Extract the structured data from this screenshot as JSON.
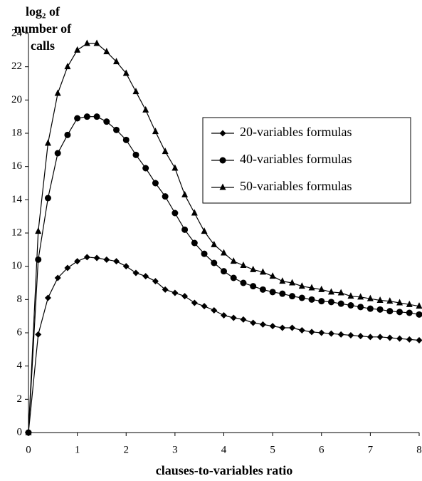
{
  "chart_data": {
    "type": "line",
    "y_label": "log₂ of number of calls",
    "x_label": "clauses-to-variables ratio",
    "x": [
      0,
      0.2,
      0.4,
      0.6,
      0.8,
      1,
      1.2,
      1.4,
      1.6,
      1.8,
      2,
      2.2,
      2.4,
      2.6,
      2.8,
      3,
      3.2,
      3.4,
      3.6,
      3.8,
      4,
      4.2,
      4.4,
      4.6,
      4.8,
      5,
      5.2,
      5.4,
      5.6,
      5.8,
      6,
      6.2,
      6.4,
      6.6,
      6.8,
      7,
      7.2,
      7.4,
      7.6,
      7.8,
      8
    ],
    "series": [
      {
        "name": "20-variables formulas",
        "color": "#000000",
        "marker": "diamond",
        "values": [
          0,
          5.9,
          8.1,
          9.3,
          9.9,
          10.3,
          10.55,
          10.5,
          10.4,
          10.3,
          10,
          9.6,
          9.4,
          9.1,
          8.6,
          8.4,
          8.2,
          7.8,
          7.6,
          7.35,
          7.05,
          6.9,
          6.8,
          6.6,
          6.5,
          6.4,
          6.3,
          6.3,
          6.15,
          6.05,
          6,
          5.95,
          5.9,
          5.85,
          5.8,
          5.75,
          5.75,
          5.7,
          5.65,
          5.6,
          5.55
        ]
      },
      {
        "name": "40-variables formulas",
        "color": "#000000",
        "marker": "circle",
        "values": [
          0,
          10.4,
          14.1,
          16.8,
          17.9,
          18.9,
          19,
          19,
          18.7,
          18.2,
          17.6,
          16.7,
          15.9,
          15,
          14.2,
          13.2,
          12.2,
          11.4,
          10.75,
          10.2,
          9.7,
          9.3,
          9,
          8.8,
          8.6,
          8.45,
          8.35,
          8.2,
          8.1,
          8,
          7.9,
          7.85,
          7.75,
          7.65,
          7.55,
          7.45,
          7.4,
          7.3,
          7.25,
          7.2,
          7.1
        ]
      },
      {
        "name": "50-variables formulas",
        "color": "#000000",
        "marker": "triangle",
        "values": [
          0,
          12.1,
          17.4,
          20.4,
          22,
          23,
          23.4,
          23.4,
          22.9,
          22.3,
          21.6,
          20.5,
          19.4,
          18.1,
          16.9,
          15.9,
          14.3,
          13.2,
          12.1,
          11.3,
          10.8,
          10.3,
          10.05,
          9.8,
          9.65,
          9.4,
          9.1,
          9,
          8.8,
          8.7,
          8.6,
          8.45,
          8.4,
          8.2,
          8.15,
          8.05,
          7.95,
          7.9,
          7.8,
          7.7,
          7.6
        ]
      }
    ],
    "xlim": [
      0,
      8
    ],
    "xticks": [
      0,
      1,
      2,
      3,
      4,
      5,
      6,
      7,
      8
    ],
    "ylim": [
      0,
      24
    ],
    "yticks": [
      0,
      2,
      4,
      6,
      8,
      10,
      12,
      14,
      16,
      18,
      20,
      22,
      24
    ],
    "grid": false,
    "legend": "upper right"
  }
}
